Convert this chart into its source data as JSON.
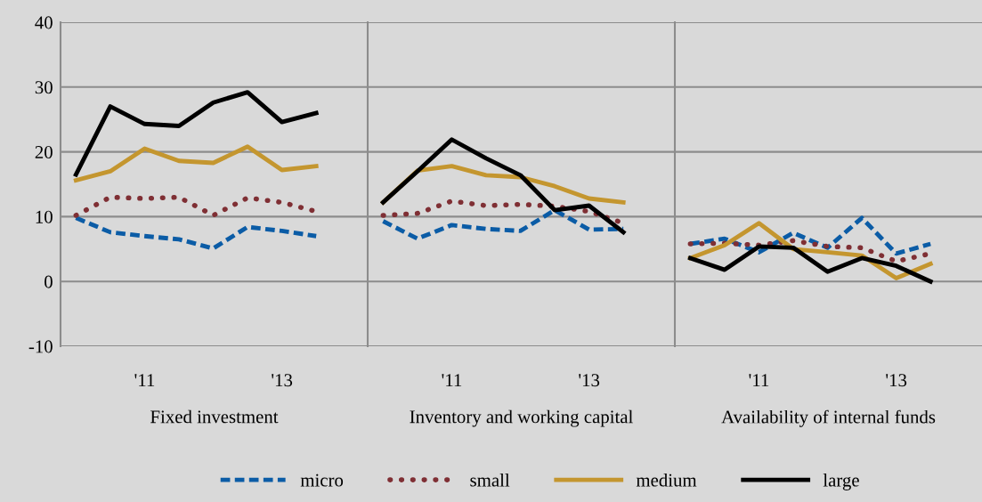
{
  "chart_data": [
    {
      "type": "line",
      "xlabel": "Fixed investment",
      "categories": [
        null,
        null,
        "'11",
        null,
        null,
        null,
        "'13",
        null
      ],
      "ylim": [
        -10,
        40
      ],
      "yticks": [
        -10,
        0,
        10,
        20,
        30,
        40
      ],
      "grid": "y",
      "legend": "bottom",
      "series": [
        {
          "name": "micro",
          "color": "#0b5ca6",
          "line_style": "dashed",
          "values": [
            9.8,
            7.6,
            7.0,
            6.5,
            5.1,
            8.4,
            7.8,
            7.0
          ]
        },
        {
          "name": "small",
          "color": "#7f2f34",
          "line_style": "dotted",
          "values": [
            10.2,
            13.0,
            12.8,
            13.0,
            10.2,
            12.9,
            12.2,
            10.8
          ]
        },
        {
          "name": "medium",
          "color": "#c4962f",
          "line_style": "solid",
          "values": [
            15.6,
            17.0,
            20.5,
            18.6,
            18.3,
            20.8,
            17.2,
            17.8
          ]
        },
        {
          "name": "large",
          "color": "#000000",
          "line_style": "solid",
          "values": [
            16.5,
            27.0,
            24.3,
            24.0,
            27.6,
            29.2,
            24.6,
            26.0
          ]
        }
      ]
    },
    {
      "type": "line",
      "xlabel": "Inventory and working capital",
      "categories": [
        null,
        null,
        "'11",
        null,
        null,
        null,
        "'13",
        null
      ],
      "ylim": [
        -10,
        40
      ],
      "yticks": [
        -10,
        0,
        10,
        20,
        30,
        40
      ],
      "grid": "y",
      "tick_labels": "x",
      "series": [
        {
          "color": "#0b5ca6",
          "line_style": "dashed",
          "values": [
            9.3,
            6.6,
            8.7,
            8.1,
            7.8,
            11.0,
            8.0,
            8.1
          ]
        },
        {
          "color": "#7f2f34",
          "line_style": "dotted",
          "values": [
            10.2,
            10.5,
            12.4,
            11.7,
            11.9,
            11.6,
            10.8,
            9.0
          ]
        },
        {
          "color": "#c4962f",
          "line_style": "solid",
          "values": [
            12.2,
            17.1,
            17.8,
            16.4,
            16.1,
            14.7,
            12.8,
            12.2
          ]
        },
        {
          "color": "#000000",
          "line_style": "solid",
          "values": [
            12.2,
            17.0,
            21.9,
            19.0,
            16.4,
            11.0,
            11.7,
            7.6
          ]
        }
      ]
    },
    {
      "type": "line",
      "xlabel": "Availability of internal funds",
      "categories": [
        null,
        null,
        "'11",
        null,
        null,
        null,
        "'13",
        null
      ],
      "ylim": [
        -10,
        40
      ],
      "yticks": [
        -10,
        0,
        10,
        20,
        30,
        40
      ],
      "grid": "y",
      "tick_labels": "x",
      "series": [
        {
          "color": "#0b5ca6",
          "line_style": "dashed",
          "values": [
            5.8,
            6.6,
            4.5,
            7.5,
            5.2,
            9.8,
            4.3,
            5.8
          ]
        },
        {
          "color": "#7f2f34",
          "line_style": "dotted",
          "values": [
            5.8,
            5.9,
            5.6,
            6.3,
            5.4,
            5.2,
            3.1,
            4.3
          ]
        },
        {
          "color": "#c4962f",
          "line_style": "solid",
          "values": [
            3.6,
            5.6,
            9.0,
            5.0,
            4.5,
            4.0,
            0.5,
            2.7
          ]
        },
        {
          "color": "#000000",
          "line_style": "solid",
          "values": [
            3.6,
            1.8,
            5.4,
            5.2,
            1.5,
            3.6,
            2.4,
            0.0
          ]
        }
      ]
    }
  ]
}
